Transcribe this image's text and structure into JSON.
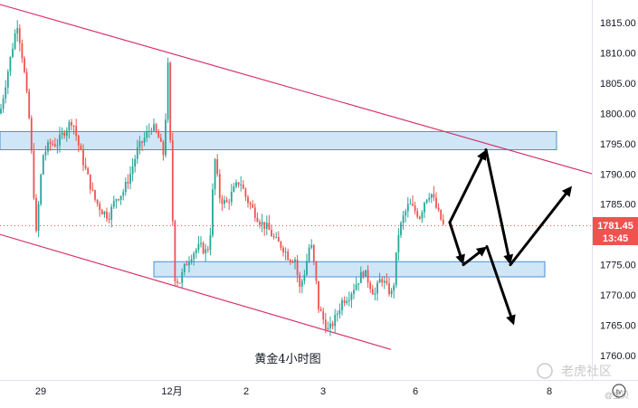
{
  "chart_data": {
    "type": "candlestick",
    "title": "",
    "annotation": "黄金4小时图",
    "y_ticks": [
      1760,
      1765,
      1770,
      1775,
      1780,
      1785,
      1790,
      1795,
      1800,
      1805,
      1810,
      1815
    ],
    "y_tick_labels": [
      "1760.00",
      "1765.00",
      "1770.00",
      "1775.00",
      "1780.00",
      "1785.00",
      "1790.00",
      "1795.00",
      "1800.00",
      "1805.00",
      "1810.00",
      "1815.00"
    ],
    "ylim": [
      1757.5,
      1818.5
    ],
    "xlim": [
      0,
      655
    ],
    "x_ticks": [
      {
        "label": "29",
        "x": 45
      },
      {
        "label": "12月",
        "x": 190
      },
      {
        "label": "2",
        "x": 272
      },
      {
        "label": "3",
        "x": 357
      },
      {
        "label": "6",
        "x": 459
      },
      {
        "label": "8",
        "x": 607
      }
    ],
    "current_price": "1781.45",
    "countdown": "13:45",
    "colors": {
      "up": "#26a69a",
      "down": "#ef5350",
      "channel": "#d6336c",
      "zone_fill": "#cfe6f7",
      "zone_border": "#4a8fd6",
      "arrow": "#000000",
      "price_tag": "#ef5350"
    },
    "price_path": [
      [
        0,
        1800
      ],
      [
        10,
        1808
      ],
      [
        19,
        1815
      ],
      [
        26,
        1808
      ],
      [
        33,
        1798
      ],
      [
        40,
        1780
      ],
      [
        47,
        1793
      ],
      [
        55,
        1795
      ],
      [
        63,
        1795
      ],
      [
        71,
        1797
      ],
      [
        80,
        1799
      ],
      [
        88,
        1794
      ],
      [
        96,
        1790
      ],
      [
        104,
        1786
      ],
      [
        112,
        1784
      ],
      [
        120,
        1783
      ],
      [
        128,
        1786
      ],
      [
        136,
        1787
      ],
      [
        144,
        1790
      ],
      [
        152,
        1794
      ],
      [
        160,
        1796
      ],
      [
        168,
        1798
      ],
      [
        175,
        1796
      ],
      [
        181,
        1793
      ],
      [
        186,
        1809
      ],
      [
        189,
        1790
      ],
      [
        193,
        1773
      ],
      [
        198,
        1772
      ],
      [
        205,
        1775
      ],
      [
        213,
        1777
      ],
      [
        221,
        1778
      ],
      [
        229,
        1777
      ],
      [
        233,
        1781
      ],
      [
        237,
        1793
      ],
      [
        243,
        1786
      ],
      [
        250,
        1785
      ],
      [
        257,
        1787
      ],
      [
        265,
        1789
      ],
      [
        272,
        1786
      ],
      [
        280,
        1784
      ],
      [
        288,
        1782
      ],
      [
        296,
        1781
      ],
      [
        304,
        1779
      ],
      [
        312,
        1778
      ],
      [
        320,
        1776
      ],
      [
        326,
        1776
      ],
      [
        331,
        1771
      ],
      [
        337,
        1774
      ],
      [
        343,
        1779
      ],
      [
        348,
        1774
      ],
      [
        352,
        1768
      ],
      [
        357,
        1766
      ],
      [
        363,
        1764
      ],
      [
        370,
        1766
      ],
      [
        378,
        1769
      ],
      [
        386,
        1770
      ],
      [
        394,
        1772
      ],
      [
        402,
        1774
      ],
      [
        408,
        1772
      ],
      [
        414,
        1770
      ],
      [
        421,
        1773
      ],
      [
        428,
        1771
      ],
      [
        434,
        1770
      ],
      [
        440,
        1780
      ],
      [
        446,
        1783
      ],
      [
        452,
        1785
      ],
      [
        458,
        1784
      ],
      [
        464,
        1783
      ],
      [
        470,
        1786
      ],
      [
        476,
        1787
      ],
      [
        483,
        1784
      ],
      [
        490,
        1781.45
      ]
    ],
    "channel_upper": [
      [
        0,
        1818
      ],
      [
        655,
        1790
      ]
    ],
    "channel_lower": [
      [
        0,
        1780
      ],
      [
        432,
        1761
      ]
    ],
    "zones": [
      {
        "x0": 0,
        "x1": 615,
        "y0": 1794,
        "y1": 1797
      },
      {
        "x0": 170,
        "x1": 602,
        "y0": 1773,
        "y1": 1775.5
      }
    ],
    "arrows_a": [
      [
        497,
        1782
      ],
      [
        537,
        1794
      ],
      [
        564,
        1775
      ],
      [
        632,
        1788
      ]
    ],
    "arrows_b": [
      [
        497,
        1782
      ],
      [
        512,
        1775
      ],
      [
        538,
        1778
      ],
      [
        568,
        1765
      ]
    ]
  },
  "watermark": "老虎社区",
  "watermark_id": "@宝贝",
  "tv_logo": "tv"
}
